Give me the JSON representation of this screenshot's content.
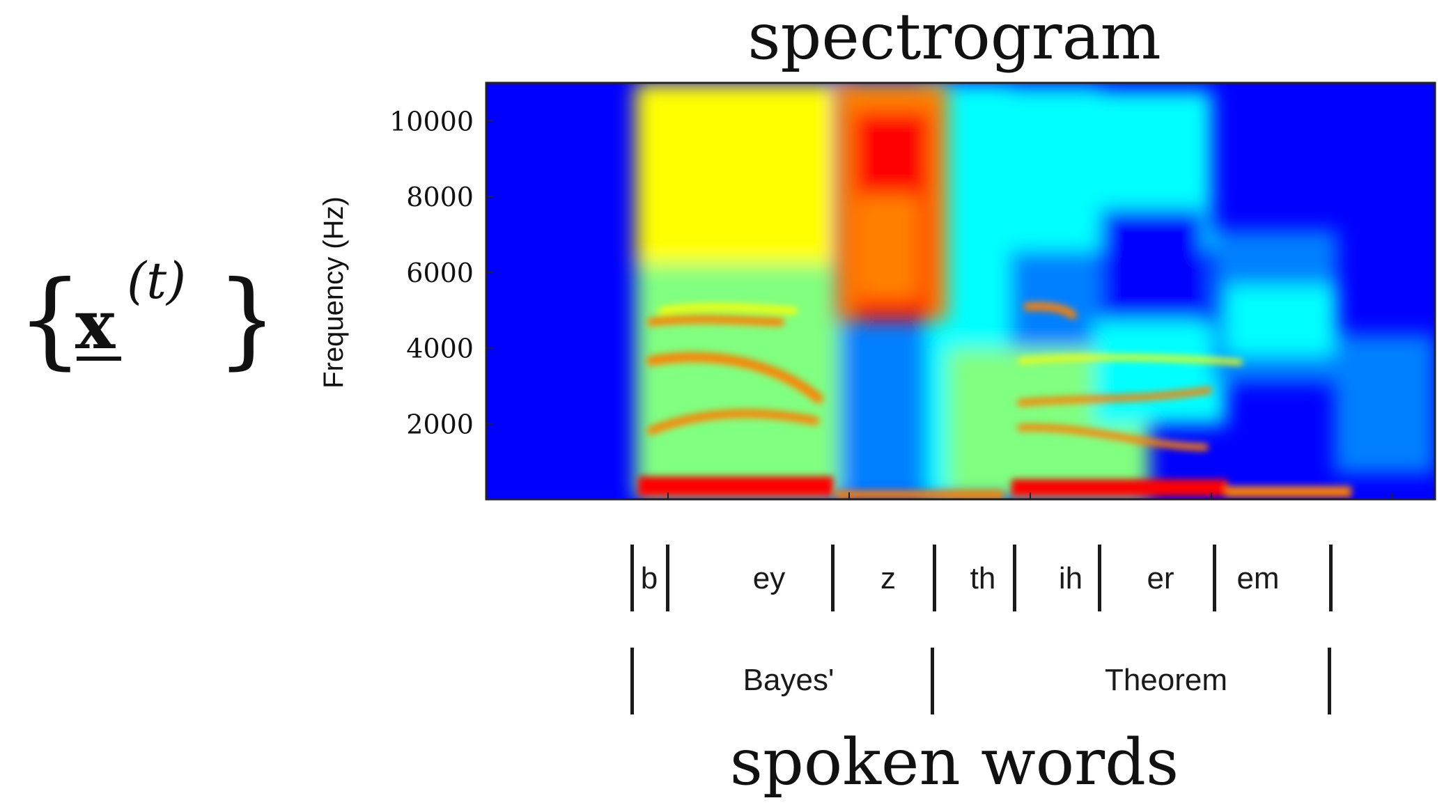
{
  "chart_data": {
    "type": "heatmap",
    "title": "spectrogram",
    "ylabel": "Frequency (Hz)",
    "xlabel": "",
    "yticks": [
      2000,
      4000,
      6000,
      8000,
      10000
    ],
    "ylim": [
      0,
      11000
    ],
    "colormap": [
      "#00007f",
      "#0000ff",
      "#0080ff",
      "#00ffff",
      "#80ff80",
      "#ffff00",
      "#ff8000",
      "#ff0000",
      "#7f0000"
    ],
    "grid": false,
    "phonemes": [
      "b",
      "ey",
      "z",
      "th",
      "ih",
      "er",
      "em"
    ],
    "words": [
      "Bayes'",
      "Theorem"
    ],
    "bottom_title": "spoken words"
  },
  "notation": {
    "open_brace": "{",
    "variable": "x",
    "superscript": "(t)",
    "close_brace": "}"
  }
}
